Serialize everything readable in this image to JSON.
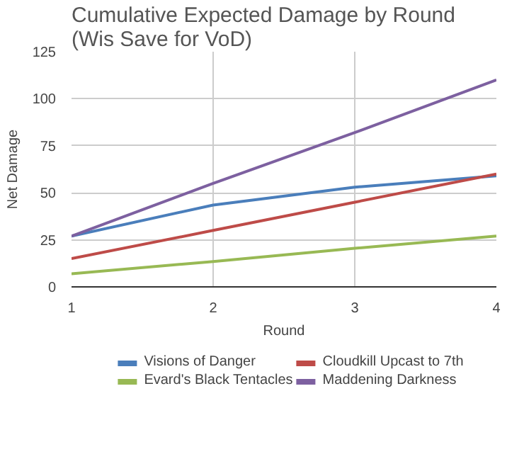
{
  "chart_data": {
    "type": "line",
    "title": "Cumulative Expected Damage by Round (Wis Save for VoD)",
    "xlabel": "Round",
    "ylabel": "Net Damage",
    "x": [
      1,
      2,
      3,
      4
    ],
    "xlim": [
      1,
      4
    ],
    "xticks": [
      1,
      2,
      3,
      4
    ],
    "ylim": [
      0,
      125
    ],
    "yticks": [
      0,
      25,
      50,
      75,
      100,
      125
    ],
    "grid": true,
    "legend": "bottom",
    "marker": "none",
    "line_style": "solid",
    "series": [
      {
        "name": "Visions of Danger",
        "color": "#4a7ebb",
        "values": [
          27,
          43.5,
          53,
          59
        ]
      },
      {
        "name": "Cloudkill Upcast to 7th",
        "color": "#be4b48",
        "values": [
          15,
          30,
          45,
          60
        ]
      },
      {
        "name": "Evard's Black Tentacles",
        "color": "#98b954",
        "values": [
          7,
          13.5,
          20.5,
          27
        ]
      },
      {
        "name": "Maddening Darkness",
        "color": "#7d60a0",
        "values": [
          27,
          55,
          82,
          110
        ]
      }
    ]
  }
}
